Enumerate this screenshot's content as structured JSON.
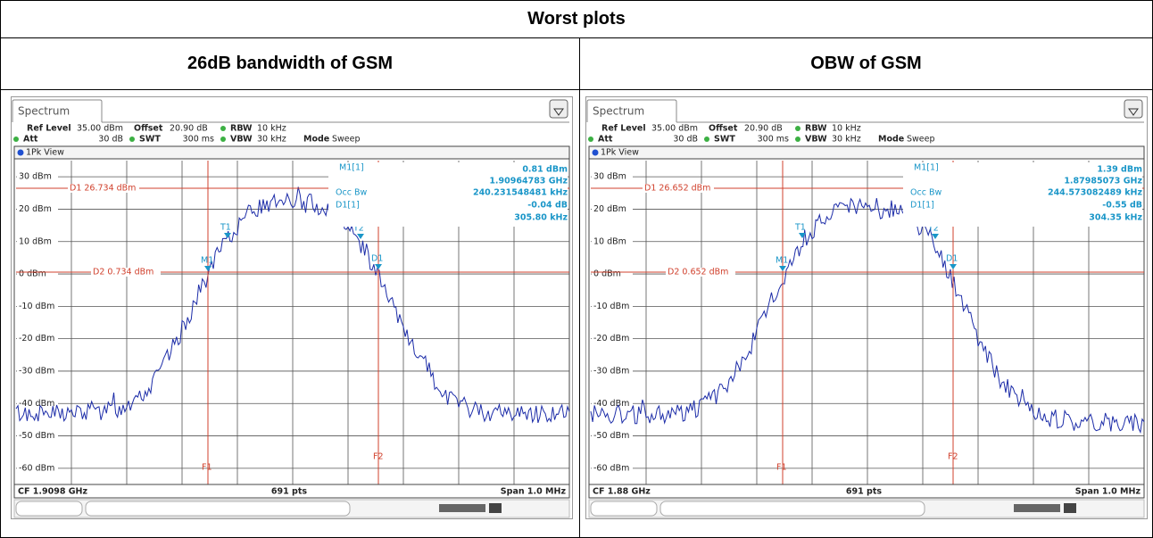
{
  "table": {
    "title": "Worst plots",
    "columns": [
      "26dB bandwidth of GSM",
      "OBW of GSM"
    ]
  },
  "plots": [
    {
      "tab": "Spectrum",
      "ref_level_label": "Ref Level",
      "ref_level": "35.00 dBm",
      "offset_label": "Offset",
      "offset": "20.90 dB",
      "rbw_label": "RBW",
      "rbw": "10 kHz",
      "att_label": "Att",
      "att": "30 dB",
      "swt_label": "SWT",
      "swt": "300 ms",
      "vbw_label": "VBW",
      "vbw": "30 kHz",
      "mode_label": "Mode",
      "mode": "Sweep",
      "view": "1Pk View",
      "y_labels": [
        "30 dBm",
        "20 dBm",
        "10 dBm",
        "0 dBm",
        "-10 dBm",
        "-20 dBm",
        "-30 dBm",
        "-40 dBm",
        "-50 dBm",
        "-60 dBm"
      ],
      "d1": "D1 26.734 dBm",
      "d2": "D2 0.734 dBm",
      "marker_readout": {
        "m1": "M1[1]",
        "m1_level": "0.81 dBm",
        "m1_freq": "1.90964783 GHz",
        "occ_bw_label": "Occ Bw",
        "occ_bw": "240.231548481 kHz",
        "d1": "D1[1]",
        "d1_level": "-0.04 dB",
        "d1_freq": "305.80 kHz"
      },
      "markers": {
        "m1": "M1",
        "t1": "T1",
        "t2": "T2",
        "d1": "D1",
        "f1": "F1",
        "f2": "F2"
      },
      "cf": "CF 1.9098 GHz",
      "points": "691 pts",
      "span": "Span 1.0 MHz"
    },
    {
      "tab": "Spectrum",
      "ref_level_label": "Ref Level",
      "ref_level": "35.00 dBm",
      "offset_label": "Offset",
      "offset": "20.90 dB",
      "rbw_label": "RBW",
      "rbw": "10 kHz",
      "att_label": "Att",
      "att": "30 dB",
      "swt_label": "SWT",
      "swt": "300 ms",
      "vbw_label": "VBW",
      "vbw": "30 kHz",
      "mode_label": "Mode",
      "mode": "Sweep",
      "view": "1Pk View",
      "y_labels": [
        "30 dBm",
        "20 dBm",
        "10 dBm",
        "0 dBm",
        "-10 dBm",
        "-20 dBm",
        "-30 dBm",
        "-40 dBm",
        "-50 dBm",
        "-60 dBm"
      ],
      "d1": "D1 26.652 dBm",
      "d2": "D2 0.652 dBm",
      "marker_readout": {
        "m1": "M1[1]",
        "m1_level": "1.39 dBm",
        "m1_freq": "1.87985073 GHz",
        "occ_bw_label": "Occ Bw",
        "occ_bw": "244.573082489 kHz",
        "d1": "D1[1]",
        "d1_level": "-0.55 dB",
        "d1_freq": "304.35 kHz"
      },
      "markers": {
        "m1": "M1",
        "t1": "T1",
        "t2": "T2",
        "d1": "D1",
        "f1": "F1",
        "f2": "F2"
      },
      "cf": "CF 1.88 GHz",
      "points": "691 pts",
      "span": "Span 1.0 MHz"
    }
  ]
}
